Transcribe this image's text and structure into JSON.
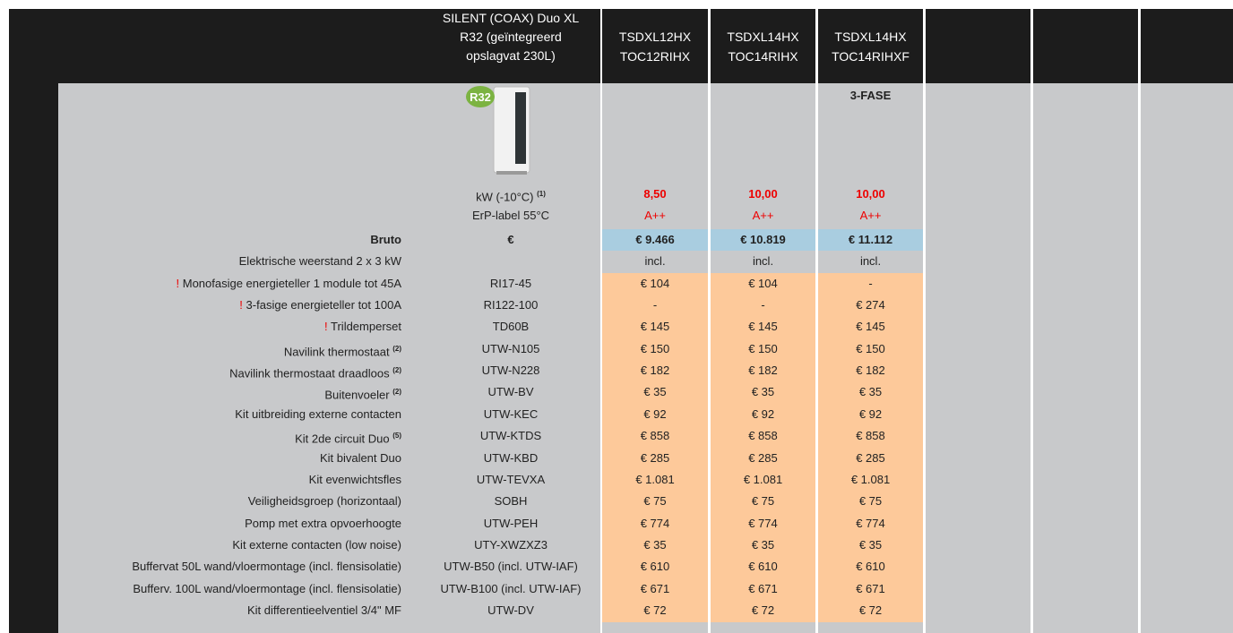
{
  "header": {
    "model": [
      "SILENT (COAX) Duo XL",
      "R32 (geïntegreerd",
      "opslagvat 230L)"
    ],
    "variants": [
      {
        "lines": [
          "TSDXL12HX",
          "TOC12RIHX"
        ]
      },
      {
        "lines": [
          "TSDXL14HX",
          "TOC14RIHX"
        ]
      },
      {
        "lines": [
          "TSDXL14HX",
          "TOC14RIHXF"
        ],
        "note": "3-FASE"
      }
    ]
  },
  "product_image": {
    "badge": "R32"
  },
  "specs": [
    {
      "label": "kW (-10°C)",
      "sup": "(1)",
      "values": [
        "8,50",
        "10,00",
        "10,00"
      ]
    },
    {
      "label": "ErP-label 55°C",
      "values": [
        "A++",
        "A++",
        "A++"
      ]
    }
  ],
  "bruto": {
    "label": "Bruto",
    "code": "€",
    "values": [
      "€ 9.466",
      "€ 10.819",
      "€ 11.112"
    ]
  },
  "included": {
    "label": "Elektrische weerstand 2 x 3 kW",
    "values": [
      "incl.",
      "incl.",
      "incl."
    ]
  },
  "accessories": [
    {
      "flag": "!",
      "label": "Monofasige energieteller 1 module tot 45A",
      "code": "RI17-45",
      "values": [
        "€ 104",
        "€ 104",
        "-"
      ]
    },
    {
      "flag": "!",
      "label": "3-fasige energieteller tot 100A",
      "code": "RI122-100",
      "values": [
        "-",
        "-",
        "€ 274"
      ]
    },
    {
      "flag": "!",
      "label": "Trildemperset",
      "code": "TD60B",
      "values": [
        "€ 145",
        "€ 145",
        "€ 145"
      ]
    },
    {
      "label": "Navilink thermostaat",
      "sup": "(2)",
      "code": "UTW-N105",
      "values": [
        "€ 150",
        "€ 150",
        "€ 150"
      ]
    },
    {
      "label": "Navilink thermostaat draadloos",
      "sup": "(2)",
      "code": "UTW-N228",
      "values": [
        "€ 182",
        "€ 182",
        "€ 182"
      ]
    },
    {
      "label": "Buitenvoeler",
      "sup": "(2)",
      "code": "UTW-BV",
      "values": [
        "€ 35",
        "€ 35",
        "€ 35"
      ]
    },
    {
      "label": "Kit uitbreiding externe contacten",
      "code": "UTW-KEC",
      "values": [
        "€ 92",
        "€ 92",
        "€ 92"
      ]
    },
    {
      "label": "Kit 2de circuit Duo",
      "sup": "(5)",
      "code": "UTW-KTDS",
      "values": [
        "€ 858",
        "€ 858",
        "€ 858"
      ]
    },
    {
      "label": "Kit bivalent Duo",
      "code": "UTW-KBD",
      "values": [
        "€ 285",
        "€ 285",
        "€ 285"
      ]
    },
    {
      "label": "Kit evenwichtsfles",
      "code": "UTW-TEVXA",
      "values": [
        "€ 1.081",
        "€ 1.081",
        "€ 1.081"
      ]
    },
    {
      "label": "Veiligheidsgroep (horizontaal)",
      "code": "SOBH",
      "values": [
        "€ 75",
        "€ 75",
        "€ 75"
      ]
    },
    {
      "label": "Pomp met extra opvoerhoogte",
      "code": "UTW-PEH",
      "values": [
        "€ 774",
        "€ 774",
        "€ 774"
      ]
    },
    {
      "label": "Kit externe contacten (low noise)",
      "code": "UTY-XWZXZ3",
      "values": [
        "€ 35",
        "€ 35",
        "€ 35"
      ]
    },
    {
      "label": "Buffervat 50L wand/vloermontage (incl. flensisolatie)",
      "code": "UTW-B50 (incl. UTW-IAF)",
      "values": [
        "€ 610",
        "€ 610",
        "€ 610"
      ]
    },
    {
      "label": "Bufferv. 100L wand/vloermontage (incl. flensisolatie)",
      "code": "UTW-B100 (incl. UTW-IAF)",
      "values": [
        "€ 671",
        "€ 671",
        "€ 671"
      ]
    },
    {
      "label": "Kit differentieelventiel 3/4\" MF",
      "code": "UTW-DV",
      "values": [
        "€ 72",
        "€ 72",
        "€ 72"
      ]
    }
  ]
}
